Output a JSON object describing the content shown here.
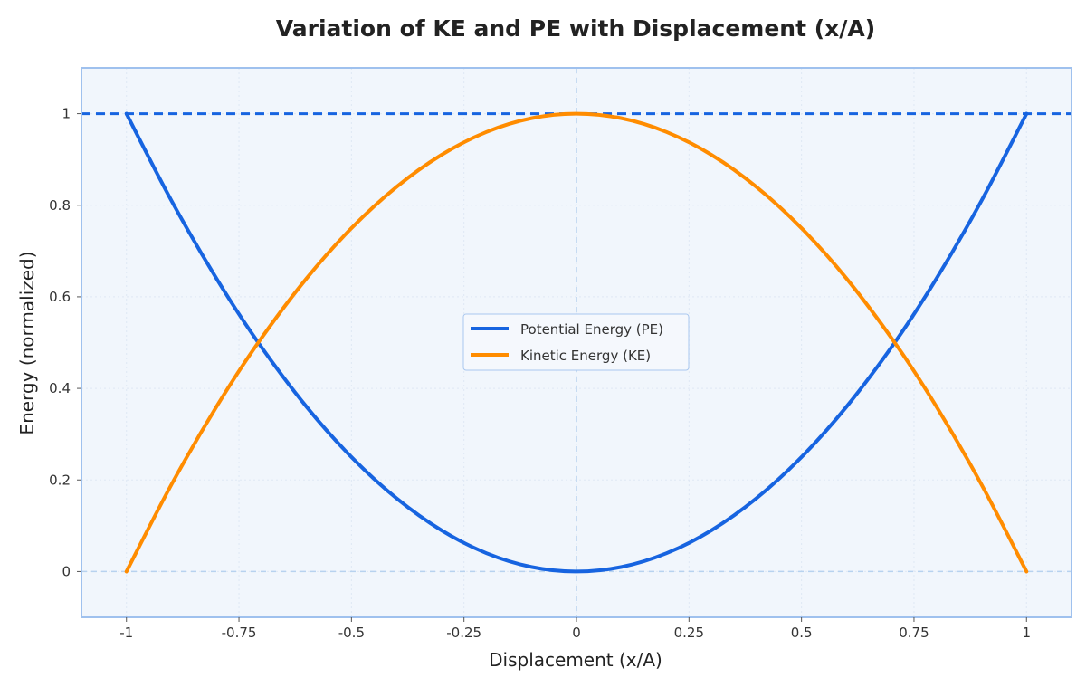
{
  "chart_data": {
    "type": "line",
    "title": "Variation of KE and PE with Displacement (x/A)",
    "xlabel": "Displacement (x/A)",
    "ylabel": "Energy (normalized)",
    "xlim": [
      -1.1,
      1.1
    ],
    "ylim": [
      -0.1,
      1.1
    ],
    "xticks": [
      -1,
      -0.75,
      -0.5,
      -0.25,
      0,
      0.25,
      0.5,
      0.75,
      1
    ],
    "xtick_labels": [
      "-1",
      "-0.75",
      "-0.5",
      "-0.25",
      "0",
      "0.25",
      "0.5",
      "0.75",
      "1"
    ],
    "yticks": [
      0,
      0.2,
      0.4,
      0.6,
      0.8,
      1
    ],
    "ytick_labels": [
      "0",
      "0.2",
      "0.4",
      "0.6",
      "0.8",
      "1"
    ],
    "grid": true,
    "legend_position": "center",
    "x": [
      -1,
      -0.9,
      -0.8,
      -0.7071,
      -0.6,
      -0.5,
      -0.4,
      -0.3,
      -0.2,
      -0.1,
      0,
      0.1,
      0.2,
      0.3,
      0.4,
      0.5,
      0.6,
      0.7071,
      0.8,
      0.9,
      1
    ],
    "series": [
      {
        "name": "Potential Energy (PE)",
        "color": "#1764e0",
        "values": [
          1,
          0.81,
          0.64,
          0.5,
          0.36,
          0.25,
          0.16,
          0.09,
          0.04,
          0.01,
          0,
          0.01,
          0.04,
          0.09,
          0.16,
          0.25,
          0.36,
          0.5,
          0.64,
          0.81,
          1
        ]
      },
      {
        "name": "Kinetic Energy (KE)",
        "color": "#ff8c00",
        "values": [
          0,
          0.19,
          0.36,
          0.5,
          0.64,
          0.75,
          0.84,
          0.91,
          0.96,
          0.99,
          1,
          0.99,
          0.96,
          0.91,
          0.84,
          0.75,
          0.64,
          0.5,
          0.36,
          0.19,
          0
        ]
      }
    ],
    "reference_lines": [
      {
        "orientation": "horizontal",
        "value": 1,
        "style": "dashed",
        "color": "#1764e0"
      },
      {
        "orientation": "horizontal",
        "value": 0,
        "style": "dashed",
        "color": "#b7d2ef"
      },
      {
        "orientation": "vertical",
        "value": 0,
        "style": "dashed",
        "color": "#b7d2ef"
      }
    ],
    "colors": {
      "plot_background": "#f1f6fc",
      "plot_border": "#9fc1ee",
      "grid": "#dfe8f4"
    }
  }
}
